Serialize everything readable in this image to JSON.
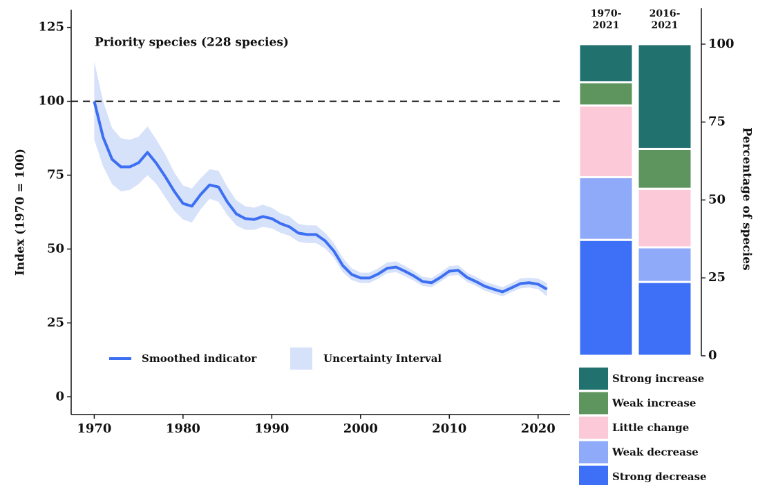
{
  "chart_data": [
    {
      "type": "line",
      "title": "Priority species (228 species)",
      "ylabel": "Index (1970 = 100)",
      "x": [
        1970,
        1971,
        1972,
        1973,
        1974,
        1975,
        1976,
        1977,
        1978,
        1979,
        1980,
        1981,
        1982,
        1983,
        1984,
        1985,
        1986,
        1987,
        1988,
        1989,
        1990,
        1991,
        1992,
        1993,
        1994,
        1995,
        1996,
        1997,
        1998,
        1999,
        2000,
        2001,
        2002,
        2003,
        2004,
        2005,
        2006,
        2007,
        2008,
        2009,
        2010,
        2011,
        2012,
        2013,
        2014,
        2015,
        2016,
        2017,
        2018,
        2019,
        2020,
        2021
      ],
      "series": [
        {
          "name": "Smoothed indicator",
          "color": "#3d6ff2",
          "values": [
            100,
            87.8,
            80.4,
            77.8,
            77.8,
            79.2,
            82.7,
            79,
            74.5,
            69.6,
            65.4,
            64.5,
            68.5,
            71.7,
            71,
            65.9,
            61.9,
            60.3,
            60,
            61,
            60.3,
            58.6,
            57.5,
            55.4,
            54.9,
            54.9,
            52.8,
            49.3,
            44.4,
            41.4,
            40.2,
            40.2,
            41.6,
            43.5,
            43.9,
            42.5,
            40.9,
            39,
            38.6,
            40.4,
            42.5,
            42.8,
            40.4,
            39,
            37.4,
            36.4,
            35.5,
            36.9,
            38.3,
            38.6,
            38.1,
            36.4
          ]
        }
      ],
      "band": {
        "name": "Uncertainty Interval",
        "color": "#d6e1fa",
        "upper": [
          113.5,
          100,
          91,
          87.5,
          87,
          88,
          91.5,
          87,
          82,
          76,
          71.5,
          70.5,
          74,
          77,
          76.5,
          71,
          66.5,
          64.5,
          64,
          65,
          64,
          62,
          61,
          58.5,
          58,
          58,
          55.5,
          52,
          47,
          43.5,
          42,
          42,
          43.5,
          45.5,
          45.8,
          44.3,
          42.6,
          40.6,
          40.2,
          42,
          44.2,
          44.5,
          42,
          40.6,
          39,
          38,
          37.1,
          38.5,
          40,
          40.3,
          40,
          38.5
        ],
        "lower": [
          87,
          78,
          72,
          69.5,
          70,
          72,
          75,
          72,
          67.5,
          63,
          60,
          59,
          63.5,
          67,
          66,
          61.5,
          58,
          56.5,
          56.5,
          57.5,
          57,
          55.5,
          54.5,
          52.5,
          52,
          52,
          50.2,
          47,
          42.2,
          39.5,
          38.5,
          38.5,
          40,
          41.8,
          42.2,
          40.8,
          39.3,
          37.5,
          37.1,
          38.9,
          41,
          41.2,
          38.9,
          37.5,
          35.9,
          34.9,
          34,
          35.4,
          36.7,
          37,
          36.4,
          34
        ]
      },
      "reference_line": 100,
      "xlim": [
        1967.4,
        2023.6
      ],
      "ylim": [
        -6,
        131
      ],
      "xticks": [
        1970,
        1980,
        1990,
        2000,
        2010,
        2020
      ],
      "yticks": [
        0,
        25,
        50,
        75,
        100,
        125
      ]
    },
    {
      "type": "stacked_bar",
      "ylabel": "Percentage of species",
      "categories": [
        "1970-2021",
        "2016-2021"
      ],
      "series": [
        {
          "name": "Strong decrease",
          "color": "#3d6ff7",
          "values": [
            37.2,
            23.7
          ]
        },
        {
          "name": "Weak decrease",
          "color": "#8eaaf8",
          "values": [
            20.1,
            11.1
          ]
        },
        {
          "name": "Little change",
          "color": "#fcc9d8",
          "values": [
            23,
            18.8
          ]
        },
        {
          "name": "Weak increase",
          "color": "#5e955e",
          "values": [
            7.5,
            12.8
          ]
        },
        {
          "name": "Strong increase",
          "color": "#21716f",
          "values": [
            12.2,
            33.6
          ]
        }
      ],
      "ylim": [
        0,
        111.5
      ],
      "yticks": [
        0,
        25,
        50,
        75,
        100
      ]
    }
  ]
}
